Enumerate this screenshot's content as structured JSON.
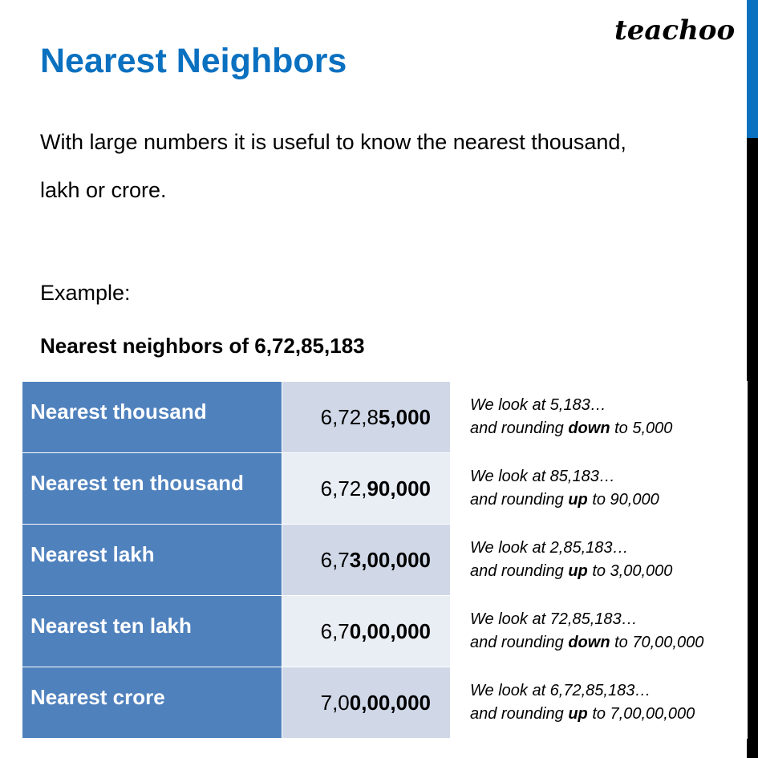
{
  "title": "Nearest Neighbors",
  "logo": "teachoo",
  "intro_line1": "With large numbers it is useful to know the nearest thousand,",
  "intro_line2": "lakh or crore.",
  "example_label": "Example:",
  "subtitle": "Nearest neighbors of 6,72,85,183",
  "colors": {
    "title": "#0a70c0",
    "label_cell": "#4f81bd",
    "value_cell_dark": "#d0d8e8",
    "value_cell_light": "#e9edf4"
  },
  "rows": [
    {
      "label": "Nearest thousand",
      "value_plain": "6,72,8",
      "value_bold": "5,000",
      "note_line1": "We look at 5,183…",
      "note_pre": "and rounding ",
      "note_bold": "down",
      "note_post": " to 5,000"
    },
    {
      "label": "Nearest ten thousand",
      "value_plain": "6,72,",
      "value_bold": "90,000",
      "note_line1": "We look at 85,183…",
      "note_pre": "and rounding ",
      "note_bold": "up",
      "note_post": " to 90,000"
    },
    {
      "label": "Nearest lakh",
      "value_plain": "6,7",
      "value_bold": "3,00,000",
      "note_line1": "We look at 2,85,183…",
      "note_pre": "and rounding ",
      "note_bold": "up",
      "note_post": " to 3,00,000"
    },
    {
      "label": "Nearest ten lakh",
      "value_plain": "6,7",
      "value_bold": "0,00,000",
      "note_line1": "We look at 72,85,183…",
      "note_pre": "and rounding ",
      "note_bold": "down",
      "note_post": " to 70,00,000"
    },
    {
      "label": "Nearest crore",
      "value_plain": "7,0",
      "value_bold": "0,00,000",
      "note_line1": "We look at 6,72,85,183…",
      "note_pre": "and rounding ",
      "note_bold": "up",
      "note_post": " to 7,00,00,000"
    }
  ]
}
